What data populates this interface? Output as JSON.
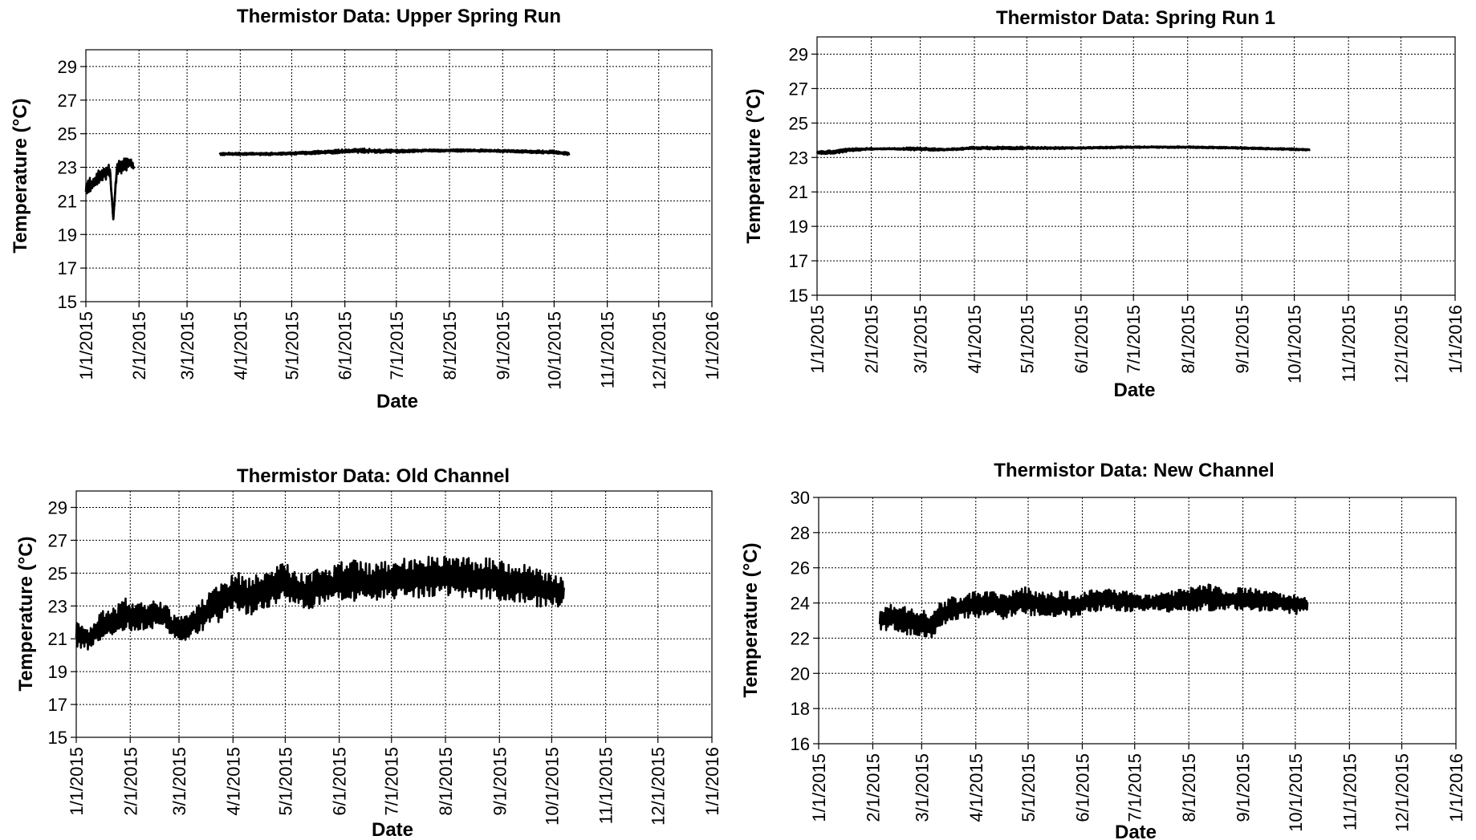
{
  "chart_data": [
    {
      "type": "line",
      "title": "Thermistor Data: Upper Spring Run",
      "xlabel": "Date",
      "ylabel": "Temperature (°C)",
      "x_tick_labels": [
        "1/1/2015",
        "2/1/2015",
        "3/1/2015",
        "4/1/2015",
        "5/1/2015",
        "6/1/2015",
        "7/1/2015",
        "8/1/2015",
        "9/1/2015",
        "10/1/2015",
        "11/1/2015",
        "12/1/2015",
        "1/1/2016"
      ],
      "y_ticks": [
        15,
        17,
        19,
        21,
        23,
        25,
        27,
        29
      ],
      "ylim": [
        15,
        30
      ],
      "xlim": [
        "2015-01-01",
        "2016-01-01"
      ],
      "grid": true,
      "line_color": "#000000",
      "series": [
        {
          "segments": [
            {
              "x": [
                "2015-01-01",
                "2015-01-03",
                "2015-01-05",
                "2015-01-07",
                "2015-01-09",
                "2015-01-11",
                "2015-01-13",
                "2015-01-15",
                "2015-01-17",
                "2015-01-19",
                "2015-01-21",
                "2015-01-23",
                "2015-01-25",
                "2015-01-27",
                "2015-01-29"
              ],
              "y": [
                21.7,
                22.0,
                21.9,
                22.3,
                22.5,
                22.6,
                22.7,
                22.8,
                19.9,
                22.9,
                23.0,
                23.1,
                23.2,
                23.3,
                23.0
              ],
              "band": [
                0.9,
                0.9,
                0.8,
                0.8,
                0.8,
                0.8,
                0.8,
                0.8,
                0.2,
                0.8,
                0.8,
                0.8,
                0.7,
                0.7,
                0.3
              ]
            },
            {
              "x": [
                "2015-03-20",
                "2015-04-20",
                "2015-05-20",
                "2015-06-10",
                "2015-06-25",
                "2015-07-20",
                "2015-08-15",
                "2015-09-10",
                "2015-09-30",
                "2015-10-10"
              ],
              "y": [
                23.8,
                23.8,
                23.9,
                24.0,
                23.95,
                24.0,
                24.0,
                23.95,
                23.9,
                23.8
              ],
              "band": [
                0.15,
                0.15,
                0.2,
                0.25,
                0.2,
                0.15,
                0.15,
                0.15,
                0.2,
                0.15
              ]
            }
          ]
        }
      ]
    },
    {
      "type": "line",
      "title": "Thermistor Data: Spring Run 1",
      "xlabel": "Date",
      "ylabel": "Temperature (°C)",
      "x_tick_labels": [
        "1/1/2015",
        "2/1/2015",
        "3/1/2015",
        "4/1/2015",
        "5/1/2015",
        "6/1/2015",
        "7/1/2015",
        "8/1/2015",
        "9/1/2015",
        "10/1/2015",
        "11/1/2015",
        "12/1/2015",
        "1/1/2016"
      ],
      "y_ticks": [
        15,
        17,
        19,
        21,
        23,
        25,
        27,
        29
      ],
      "ylim": [
        15,
        30
      ],
      "xlim": [
        "2015-01-01",
        "2016-01-01"
      ],
      "grid": true,
      "line_color": "#000000",
      "series": [
        {
          "segments": [
            {
              "x": [
                "2015-01-01",
                "2015-01-10",
                "2015-01-20",
                "2015-02-01",
                "2015-02-15",
                "2015-03-01",
                "2015-03-15",
                "2015-04-01",
                "2015-05-01",
                "2015-06-01",
                "2015-07-01",
                "2015-08-01",
                "2015-09-01",
                "2015-09-20",
                "2015-10-10"
              ],
              "y": [
                23.3,
                23.3,
                23.45,
                23.5,
                23.5,
                23.5,
                23.45,
                23.55,
                23.55,
                23.55,
                23.6,
                23.6,
                23.55,
                23.5,
                23.45
              ],
              "band": [
                0.2,
                0.2,
                0.2,
                0.1,
                0.1,
                0.2,
                0.1,
                0.15,
                0.15,
                0.1,
                0.1,
                0.1,
                0.1,
                0.1,
                0.1
              ]
            }
          ]
        }
      ]
    },
    {
      "type": "line",
      "title": "Thermistor Data: Old Channel",
      "xlabel": "Date",
      "ylabel": "Temperature (°C)",
      "x_tick_labels": [
        "1/1/2015",
        "2/1/2015",
        "3/1/2015",
        "4/1/2015",
        "5/1/2015",
        "6/1/2015",
        "7/1/2015",
        "8/1/2015",
        "9/1/2015",
        "10/1/2015",
        "11/1/2015",
        "12/1/2015",
        "1/1/2016"
      ],
      "y_ticks": [
        15,
        17,
        19,
        21,
        23,
        25,
        27,
        29
      ],
      "ylim": [
        15,
        30
      ],
      "xlim": [
        "2015-01-01",
        "2016-01-01"
      ],
      "grid": true,
      "line_color": "#000000",
      "series": [
        {
          "segments": [
            {
              "x": [
                "2015-01-01",
                "2015-01-08",
                "2015-01-15",
                "2015-01-22",
                "2015-01-29",
                "2015-02-05",
                "2015-02-12",
                "2015-02-19",
                "2015-02-26",
                "2015-03-05",
                "2015-03-12",
                "2015-03-19",
                "2015-03-26",
                "2015-04-02",
                "2015-04-09",
                "2015-04-16",
                "2015-04-23",
                "2015-04-30",
                "2015-05-07",
                "2015-05-14",
                "2015-05-21",
                "2015-05-28",
                "2015-06-04",
                "2015-06-11",
                "2015-06-18",
                "2015-06-25",
                "2015-07-02",
                "2015-07-09",
                "2015-07-16",
                "2015-07-23",
                "2015-07-30",
                "2015-08-06",
                "2015-08-13",
                "2015-08-20",
                "2015-08-27",
                "2015-09-03",
                "2015-09-10",
                "2015-09-17",
                "2015-09-24",
                "2015-10-01",
                "2015-10-08"
              ],
              "y": [
                21.3,
                21.0,
                21.8,
                22.0,
                22.5,
                22.3,
                22.4,
                22.5,
                21.7,
                21.6,
                22.2,
                22.8,
                23.3,
                24.0,
                23.5,
                23.8,
                24.0,
                24.5,
                24.0,
                23.8,
                24.2,
                24.2,
                24.6,
                24.5,
                24.4,
                24.5,
                24.6,
                24.7,
                24.7,
                24.8,
                24.8,
                24.7,
                24.7,
                24.6,
                24.7,
                24.5,
                24.4,
                24.3,
                24.1,
                24.0,
                23.9
              ],
              "band": [
                1.4,
                1.4,
                1.6,
                1.6,
                1.8,
                1.6,
                1.6,
                1.6,
                1.4,
                1.4,
                1.8,
                2.0,
                2.2,
                2.2,
                2.2,
                2.2,
                2.2,
                2.4,
                2.2,
                2.0,
                2.2,
                2.2,
                2.4,
                2.4,
                2.2,
                2.2,
                2.2,
                2.2,
                2.4,
                2.4,
                2.4,
                2.4,
                2.4,
                2.4,
                2.4,
                2.2,
                2.2,
                2.2,
                2.2,
                2.0,
                1.8
              ]
            }
          ]
        }
      ]
    },
    {
      "type": "line",
      "title": "Thermistor Data: New Channel",
      "xlabel": "Date",
      "ylabel": "Temperature (°C)",
      "x_tick_labels": [
        "1/1/2015",
        "2/1/2015",
        "3/1/2015",
        "4/1/2015",
        "5/1/2015",
        "6/1/2015",
        "7/1/2015",
        "8/1/2015",
        "9/1/2015",
        "10/1/2015",
        "11/1/2015",
        "12/1/2015",
        "1/1/2016"
      ],
      "y_ticks": [
        16,
        18,
        20,
        22,
        24,
        26,
        28,
        30
      ],
      "ylim": [
        16,
        30
      ],
      "xlim": [
        "2015-01-01",
        "2016-01-01"
      ],
      "grid": true,
      "line_color": "#000000",
      "series": [
        {
          "segments": [
            {
              "x": [
                "2015-02-05",
                "2015-02-12",
                "2015-02-19",
                "2015-02-26",
                "2015-03-05",
                "2015-03-12",
                "2015-03-19",
                "2015-03-26",
                "2015-04-02",
                "2015-04-09",
                "2015-04-16",
                "2015-04-23",
                "2015-04-30",
                "2015-05-07",
                "2015-05-14",
                "2015-05-21",
                "2015-05-28",
                "2015-06-04",
                "2015-06-11",
                "2015-06-18",
                "2015-06-25",
                "2015-07-02",
                "2015-07-09",
                "2015-07-16",
                "2015-07-23",
                "2015-07-30",
                "2015-08-06",
                "2015-08-13",
                "2015-08-20",
                "2015-08-27",
                "2015-09-03",
                "2015-09-10",
                "2015-09-17",
                "2015-09-24",
                "2015-10-01",
                "2015-10-08"
              ],
              "y": [
                23.0,
                23.2,
                23.0,
                22.8,
                22.7,
                23.3,
                23.6,
                23.8,
                23.9,
                24.0,
                23.8,
                24.0,
                24.1,
                24.0,
                23.9,
                24.0,
                23.8,
                24.1,
                24.2,
                24.2,
                24.1,
                24.0,
                24.0,
                24.1,
                24.1,
                24.2,
                24.3,
                24.3,
                24.2,
                24.2,
                24.2,
                24.2,
                24.1,
                24.0,
                23.9,
                23.9
              ],
              "band": [
                1.2,
                1.4,
                1.6,
                1.4,
                1.6,
                1.4,
                1.4,
                1.4,
                1.4,
                1.4,
                1.4,
                1.4,
                1.6,
                1.4,
                1.2,
                1.4,
                1.2,
                1.2,
                1.2,
                1.2,
                1.2,
                0.8,
                0.8,
                1.0,
                1.2,
                1.2,
                1.4,
                1.4,
                1.2,
                1.2,
                1.2,
                1.2,
                1.0,
                1.0,
                1.0,
                0.9
              ]
            }
          ]
        }
      ]
    }
  ]
}
